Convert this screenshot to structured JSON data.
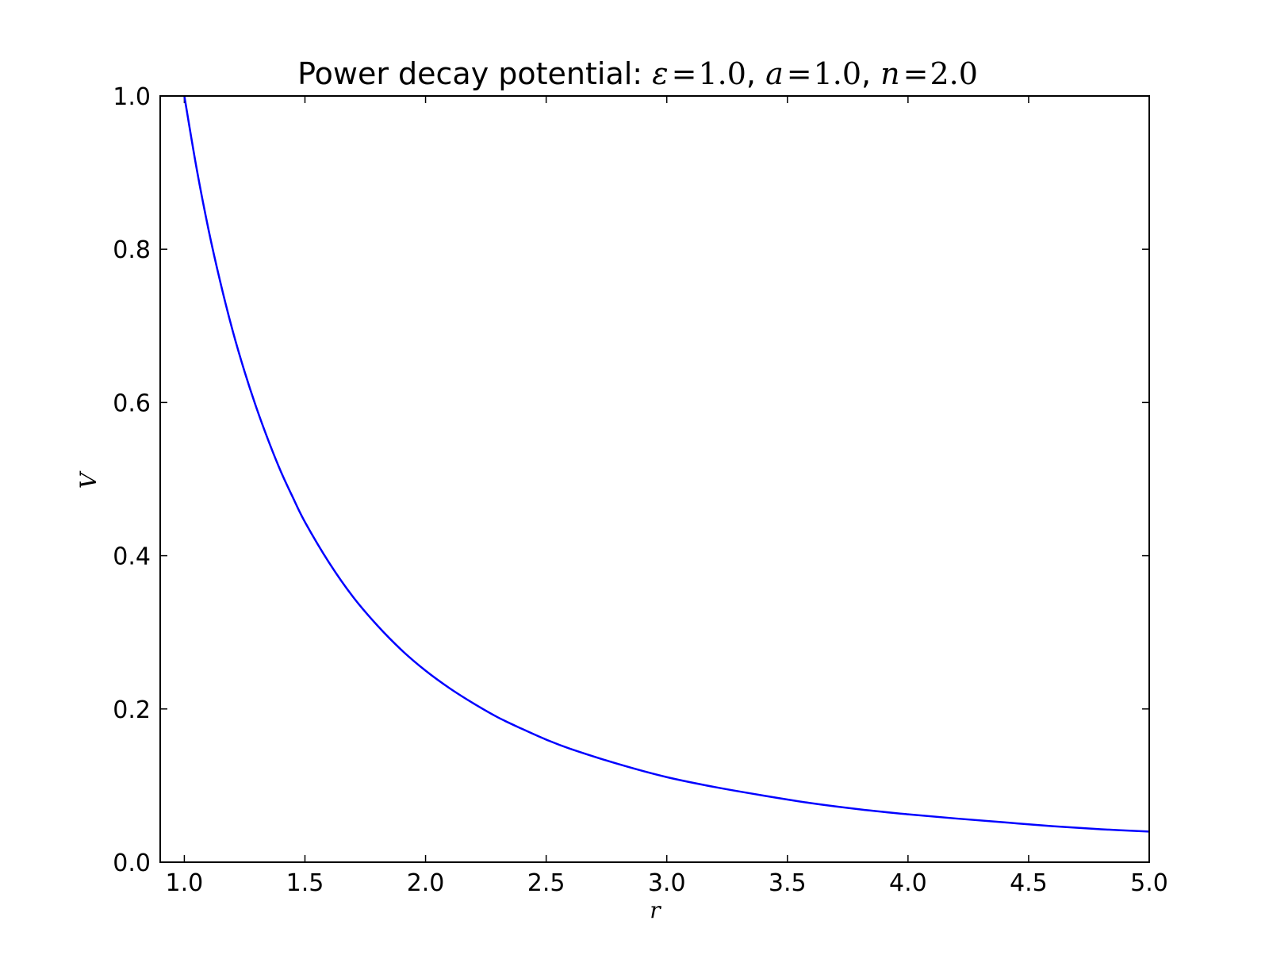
{
  "chart_data": {
    "type": "line",
    "title": {
      "prefix": "Power decay potential: ",
      "params": [
        {
          "symbol": "ε",
          "equals": "=",
          "value": "1.0"
        },
        {
          "symbol": "a",
          "equals": "=",
          "value": "1.0"
        },
        {
          "symbol": "n",
          "equals": "=",
          "value": "2.0"
        }
      ],
      "separator": ", "
    },
    "xlabel": "r",
    "ylabel": "V",
    "xlim": [
      0.9,
      5.0
    ],
    "ylim": [
      0.0,
      1.0
    ],
    "xticks": [
      1.0,
      1.5,
      2.0,
      2.5,
      3.0,
      3.5,
      4.0,
      4.5,
      5.0
    ],
    "xtick_labels": [
      "1.0",
      "1.5",
      "2.0",
      "2.5",
      "3.0",
      "3.5",
      "4.0",
      "4.5",
      "5.0"
    ],
    "yticks": [
      0.0,
      0.2,
      0.4,
      0.6,
      0.8,
      1.0
    ],
    "ytick_labels": [
      "0.0",
      "0.2",
      "0.4",
      "0.6",
      "0.8",
      "1.0"
    ],
    "grid": false,
    "series": [
      {
        "color": "#0000ff",
        "x": [
          1.0,
          1.05,
          1.1,
          1.15,
          1.2,
          1.25,
          1.3,
          1.35,
          1.4,
          1.45,
          1.5,
          1.6,
          1.7,
          1.8,
          1.9,
          2.0,
          2.1,
          2.2,
          2.3,
          2.4,
          2.5,
          2.6,
          2.8,
          3.0,
          3.2,
          3.4,
          3.6,
          3.8,
          4.0,
          4.2,
          4.4,
          4.6,
          4.8,
          5.0
        ],
        "y": [
          1.0,
          0.907,
          0.826,
          0.756,
          0.694,
          0.64,
          0.592,
          0.549,
          0.51,
          0.476,
          0.444,
          0.391,
          0.346,
          0.309,
          0.277,
          0.25,
          0.227,
          0.207,
          0.189,
          0.174,
          0.16,
          0.148,
          0.128,
          0.111,
          0.098,
          0.087,
          0.077,
          0.069,
          0.0625,
          0.057,
          0.052,
          0.047,
          0.043,
          0.04
        ]
      }
    ]
  }
}
